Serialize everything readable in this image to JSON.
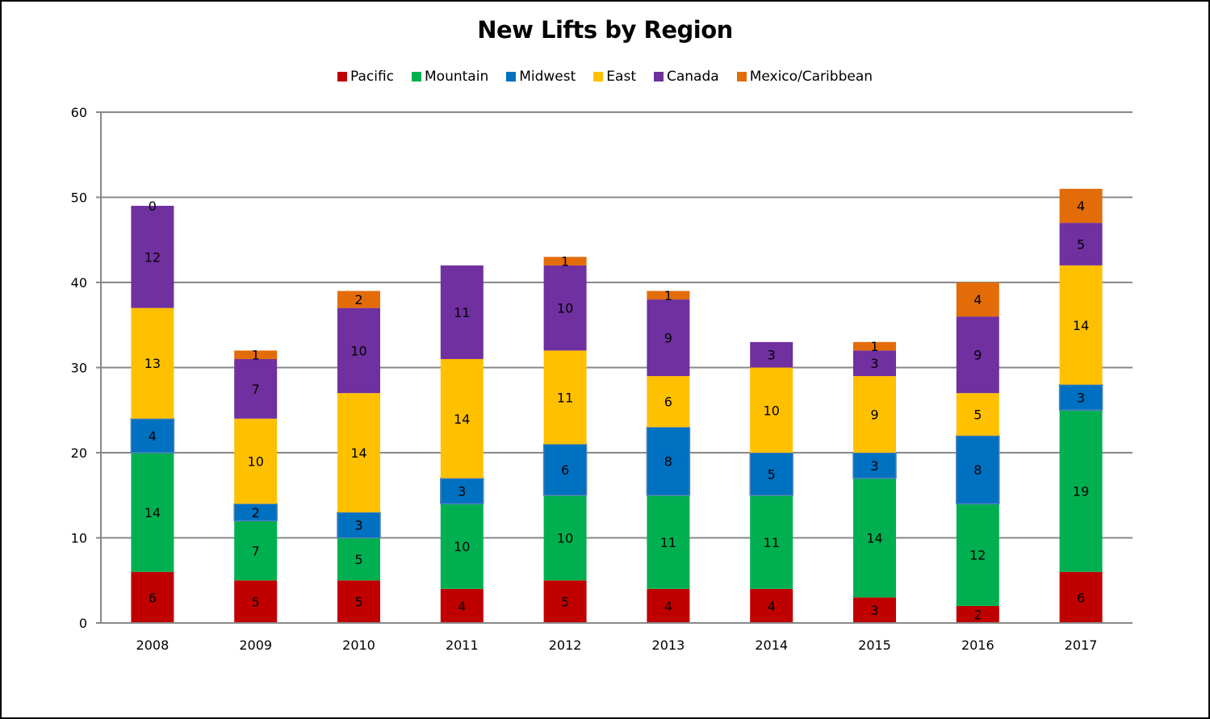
{
  "chart_data": {
    "type": "bar",
    "stacked": true,
    "title": "New Lifts by Region",
    "xlabel": "",
    "ylabel": "",
    "ylim": [
      0,
      60
    ],
    "yticks": [
      0,
      10,
      20,
      30,
      40,
      50,
      60
    ],
    "grid": true,
    "legend_position": "top",
    "categories": [
      "2008",
      "2009",
      "2010",
      "2011",
      "2012",
      "2013",
      "2014",
      "2015",
      "2016",
      "2017"
    ],
    "series": [
      {
        "name": "Pacific",
        "color": "#C00000",
        "values": [
          6,
          5,
          5,
          4,
          5,
          4,
          4,
          3,
          2,
          6
        ]
      },
      {
        "name": "Mountain",
        "color": "#00B050",
        "values": [
          14,
          7,
          5,
          10,
          10,
          11,
          11,
          14,
          12,
          19
        ]
      },
      {
        "name": "Midwest",
        "color": "#0070C0",
        "values": [
          4,
          2,
          3,
          3,
          6,
          8,
          5,
          3,
          8,
          3
        ]
      },
      {
        "name": "East",
        "color": "#FFC000",
        "values": [
          13,
          10,
          14,
          14,
          11,
          6,
          10,
          9,
          5,
          14
        ]
      },
      {
        "name": "Canada",
        "color": "#7030A0",
        "values": [
          12,
          7,
          10,
          11,
          10,
          9,
          3,
          3,
          9,
          5
        ]
      },
      {
        "name": "Mexico/Caribbean",
        "color": "#E36C09",
        "values": [
          0,
          1,
          2,
          null,
          1,
          1,
          null,
          1,
          4,
          4
        ]
      }
    ]
  }
}
